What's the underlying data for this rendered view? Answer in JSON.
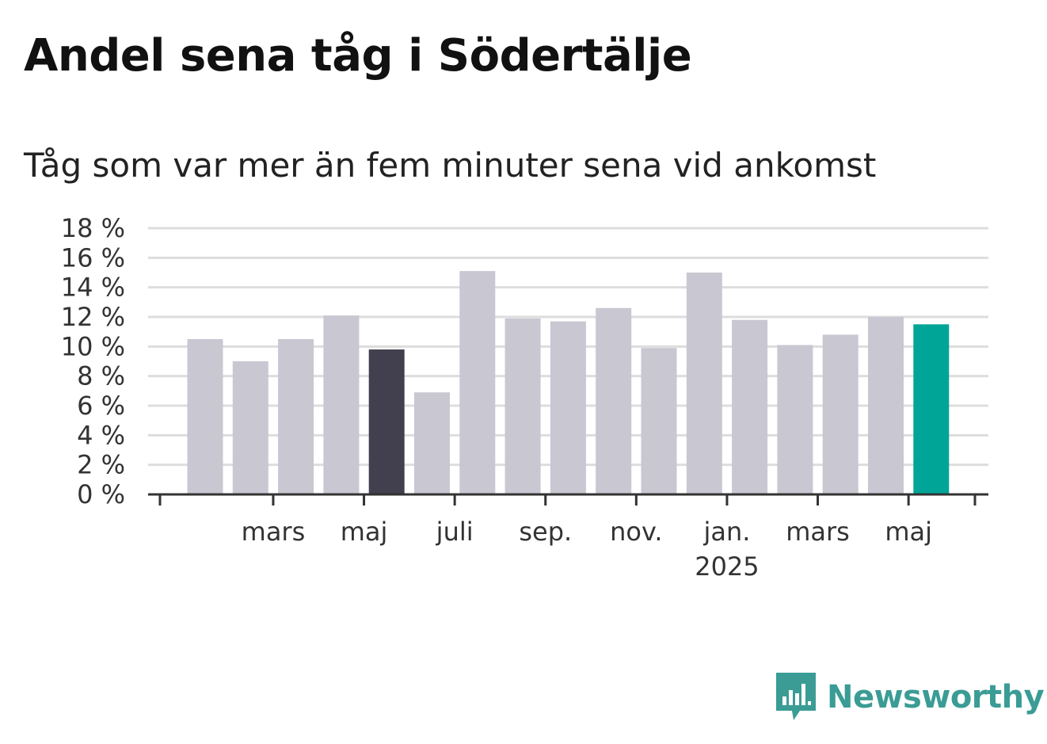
{
  "title": "Andel sena tåg i Södertälje",
  "subtitle": "Tåg som var mer än fem minuter sena vid ankomst",
  "brand": {
    "name": "Newsworthy",
    "icon": "newsworthy-logo-icon",
    "color": "#3a9c95"
  },
  "colors": {
    "bar": "#c8c7d2",
    "highlight": "#42404e",
    "latest": "#00a597",
    "grid": "#dddddd",
    "axis": "#333333"
  },
  "chart_data": {
    "type": "bar",
    "title": "Andel sena tåg i Södertälje",
    "subtitle": "Tåg som var mer än fem minuter sena vid ankomst",
    "xlabel": "",
    "ylabel": "",
    "ylim": [
      0,
      18
    ],
    "yticks": [
      "0 %",
      "2 %",
      "4 %",
      "6 %",
      "8 %",
      "10 %",
      "12 %",
      "14 %",
      "16 %",
      "18 %"
    ],
    "grid": true,
    "values": [
      10.5,
      9.0,
      10.5,
      12.1,
      9.8,
      6.9,
      15.1,
      11.9,
      11.7,
      12.6,
      9.9,
      15.0,
      11.8,
      10.1,
      10.8,
      12.0,
      11.5
    ],
    "highlight_index": 4,
    "latest_index": 16,
    "xticks": [
      {
        "label": "mars",
        "index": 1
      },
      {
        "label": "maj",
        "index": 3
      },
      {
        "label": "juli",
        "index": 5
      },
      {
        "label": "sep.",
        "index": 7
      },
      {
        "label": "nov.",
        "index": 9
      },
      {
        "label": "jan.",
        "sublabel": "2025",
        "index": 11
      },
      {
        "label": "mars",
        "index": 13
      },
      {
        "label": "maj",
        "index": 15
      }
    ]
  }
}
